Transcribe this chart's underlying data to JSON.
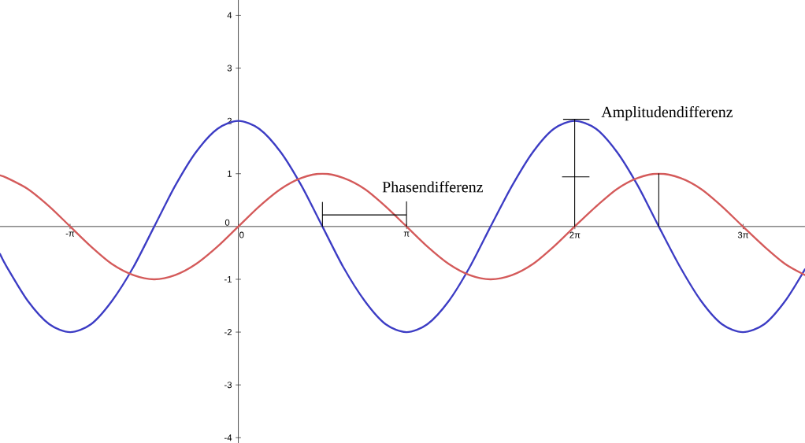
{
  "chart_data": {
    "type": "line",
    "x": [
      -4.45,
      -4.32,
      -3.93,
      -3.53,
      -3.14,
      -2.75,
      -2.36,
      -1.96,
      -1.57,
      -1.18,
      -0.79,
      -0.39,
      0,
      0.39,
      0.79,
      1.18,
      1.57,
      1.96,
      2.36,
      2.75,
      3.14,
      3.53,
      3.93,
      4.32,
      4.71,
      5.11,
      5.5,
      5.89,
      6.28,
      6.68,
      7.07,
      7.46,
      7.85,
      8.25,
      8.64,
      9.03,
      9.42,
      9.82,
      10.21,
      10.58
    ],
    "series": [
      {
        "color": "#3c3cc4",
        "values": [
          -0.52,
          -0.77,
          -1.41,
          -1.85,
          -2,
          -1.85,
          -1.41,
          -0.77,
          0,
          0.77,
          1.41,
          1.85,
          2,
          1.85,
          1.41,
          0.77,
          0,
          -0.77,
          -1.41,
          -1.85,
          -2,
          -1.85,
          -1.41,
          -0.77,
          0,
          0.77,
          1.41,
          1.85,
          2,
          1.85,
          1.41,
          0.77,
          0,
          -0.77,
          -1.41,
          -1.85,
          -2,
          -1.85,
          -1.41,
          -0.81
        ]
      },
      {
        "color": "#d45a5a",
        "values": [
          0.97,
          0.92,
          0.71,
          0.38,
          0,
          -0.38,
          -0.71,
          -0.92,
          -1,
          -0.92,
          -0.71,
          -0.38,
          0,
          0.38,
          0.71,
          0.92,
          1,
          0.92,
          0.71,
          0.38,
          0,
          -0.38,
          -0.71,
          -0.92,
          -1,
          -0.92,
          -0.71,
          -0.38,
          0,
          0.38,
          0.71,
          0.92,
          1,
          0.92,
          0.71,
          0.38,
          0,
          -0.38,
          -0.71,
          -0.92
        ]
      },
      {
        "color": "#000000",
        "x": [
          1.57,
          1.57,
          null,
          1.57,
          3.14,
          null,
          3.14,
          3.14
        ],
        "values": [
          0,
          0.46,
          null,
          0.22,
          0.22,
          null,
          0,
          0.47
        ]
      },
      {
        "color": "#000000",
        "x": [
          6.28,
          6.28,
          null,
          6.07,
          6.55,
          null,
          6.05,
          6.55,
          null,
          7.85,
          7.85
        ],
        "values": [
          0,
          2.03,
          null,
          2.03,
          2.03,
          null,
          0.94,
          0.94,
          null,
          0,
          1
        ]
      }
    ],
    "xlim": [
      -4.45,
      10.58
    ],
    "ylim": [
      -4.1,
      4.29
    ],
    "xticks": [
      {
        "value": -3.1416,
        "label": "-π"
      },
      0,
      {
        "value": 3.1416,
        "label": "π"
      },
      {
        "value": 6.2832,
        "label": "2π"
      },
      {
        "value": 9.4248,
        "label": "3π"
      }
    ],
    "yticks": [
      -4,
      -3,
      -2,
      -1,
      0,
      1,
      2,
      3,
      4
    ],
    "annotations": [
      "Phasendifferenz",
      "Amplitudendifferenz"
    ]
  }
}
